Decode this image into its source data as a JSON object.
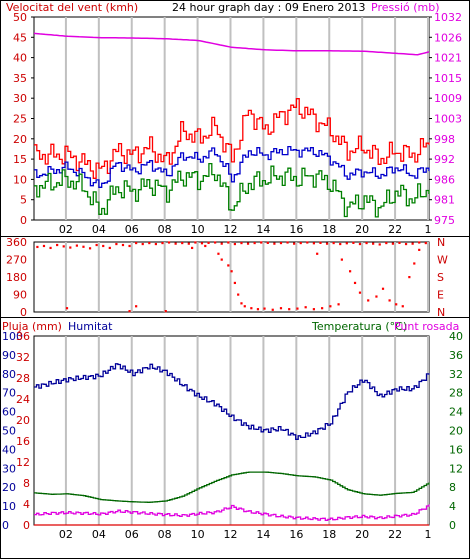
{
  "header": {
    "title": "24 hour graph day : 09 Enero 2013",
    "wind_label": "Velocitat del vent (kmh)",
    "pressure_label": "Pressió (mb)"
  },
  "direction_panel": {
    "compass": [
      "N",
      "W",
      "S",
      "E",
      "N"
    ]
  },
  "bottom_panel": {
    "rain_label": "Pluja (mm)",
    "humidity_label": "Humitat",
    "temp_label": "Temperatura (°C)",
    "dew_label": "Punt rosada"
  },
  "colors": {
    "wind_gust": "#ff0000",
    "wind_avg": "#0000cc",
    "wind_low": "#008000",
    "pressure": "#e000e0",
    "direction": "#ff0000",
    "humidity": "#000099",
    "temperature": "#006600",
    "dew": "#e000e0",
    "rain": "#dd0000",
    "grid": "#c0c0c0"
  },
  "chart_data": [
    {
      "type": "line",
      "title": "24 hour graph day : 09 Enero 2013",
      "x_ticks": [
        "02",
        "04",
        "06",
        "08",
        "10",
        "12",
        "14",
        "16",
        "18",
        "20",
        "22",
        "1"
      ],
      "x_range": [
        0,
        24
      ],
      "y_left": {
        "label": "Velocitat del vent (kmh)",
        "range": [
          0,
          50
        ],
        "ticks": [
          "0",
          "5",
          "10",
          "15",
          "20",
          "25",
          "30",
          "35",
          "40",
          "45",
          "50"
        ]
      },
      "y_right": {
        "label": "Pressió (mb)",
        "range": [
          975,
          1032
        ],
        "ticks": [
          "975",
          "981",
          "986",
          "992",
          "998",
          "1003",
          "1009",
          "1015",
          "1021",
          "1026",
          "1032"
        ]
      },
      "series": [
        {
          "name": "Pressió (mb)",
          "axis": "right",
          "x": [
            0,
            2,
            4,
            6,
            8,
            10,
            12,
            14,
            16,
            18,
            20,
            22,
            23.3,
            24
          ],
          "y": [
            1027.4,
            1026.6,
            1026.2,
            1026.1,
            1025.9,
            1025.4,
            1023.5,
            1022.8,
            1022.5,
            1022.5,
            1022.4,
            1021.8,
            1021.4,
            1022.2
          ]
        },
        {
          "axis": "left",
          "x": [
            0,
            1,
            2,
            3,
            4,
            5,
            6,
            7,
            8,
            9,
            10,
            11,
            12,
            13,
            14,
            15,
            16,
            17,
            18,
            19,
            20,
            21,
            22,
            23,
            24
          ],
          "y": [
            16,
            16,
            16,
            14,
            12,
            17,
            16,
            18,
            14,
            22,
            20,
            23,
            15,
            27,
            22,
            26,
            28,
            25,
            22,
            17,
            18,
            15,
            17,
            16,
            19
          ]
        },
        {
          "axis": "left",
          "x": [
            0,
            1,
            2,
            3,
            4,
            5,
            6,
            7,
            8,
            9,
            10,
            11,
            12,
            13,
            14,
            15,
            16,
            17,
            18,
            19,
            20,
            21,
            22,
            23,
            24
          ],
          "y": [
            11,
            12,
            13,
            11,
            8,
            14,
            12,
            14,
            11,
            16,
            15,
            17,
            10,
            17,
            16,
            17,
            17,
            17,
            15,
            11,
            12,
            11,
            13,
            11,
            13
          ]
        },
        {
          "axis": "left",
          "x": [
            0,
            1,
            2,
            3,
            4,
            5,
            6,
            7,
            8,
            9,
            10,
            11,
            12,
            13,
            14,
            15,
            16,
            17,
            18,
            19,
            20,
            21,
            22,
            23,
            24
          ],
          "y": [
            8,
            9,
            10,
            8,
            2,
            8,
            7,
            9,
            7,
            11,
            10,
            12,
            3,
            9,
            10,
            11,
            10,
            11,
            9,
            3,
            5,
            3,
            7,
            5,
            8
          ]
        }
      ]
    },
    {
      "type": "scatter",
      "x_range": [
        0,
        24
      ],
      "y_left": {
        "range": [
          0,
          360
        ],
        "ticks": [
          "0",
          "90",
          "180",
          "270",
          "360"
        ]
      },
      "y_right_labels": [
        "N",
        "W",
        "S",
        "E",
        "N"
      ],
      "points": [
        [
          0.2,
          335
        ],
        [
          0.6,
          340
        ],
        [
          1.0,
          330
        ],
        [
          1.4,
          345
        ],
        [
          1.8,
          338
        ],
        [
          2.2,
          332
        ],
        [
          2.6,
          342
        ],
        [
          3.0,
          336
        ],
        [
          3.4,
          328
        ],
        [
          3.8,
          345
        ],
        [
          4.2,
          340
        ],
        [
          4.6,
          330
        ],
        [
          5.0,
          350
        ],
        [
          5.4,
          345
        ],
        [
          5.8,
          340
        ],
        [
          6.2,
          355
        ],
        [
          6.6,
          350
        ],
        [
          7.0,
          355
        ],
        [
          7.4,
          350
        ],
        [
          7.8,
          355
        ],
        [
          8.2,
          358
        ],
        [
          8.6,
          352
        ],
        [
          9.0,
          355
        ],
        [
          9.4,
          352
        ],
        [
          9.8,
          358
        ],
        [
          10.2,
          354
        ],
        [
          10.6,
          356
        ],
        [
          11.0,
          358
        ],
        [
          11.4,
          352
        ],
        [
          11.8,
          358
        ],
        [
          12.2,
          350
        ],
        [
          12.6,
          355
        ],
        [
          13.0,
          352
        ],
        [
          13.4,
          355
        ],
        [
          13.8,
          358
        ],
        [
          14.2,
          356
        ],
        [
          14.6,
          352
        ],
        [
          15.0,
          355
        ],
        [
          15.4,
          358
        ],
        [
          15.8,
          352
        ],
        [
          16.2,
          355
        ],
        [
          16.6,
          358
        ],
        [
          17.0,
          354
        ],
        [
          17.4,
          356
        ],
        [
          17.8,
          352
        ],
        [
          18.2,
          355
        ],
        [
          18.6,
          350
        ],
        [
          19.0,
          354
        ],
        [
          19.4,
          356
        ],
        [
          19.8,
          350
        ],
        [
          20.2,
          355
        ],
        [
          20.6,
          352
        ],
        [
          21.0,
          348
        ],
        [
          21.4,
          355
        ],
        [
          21.8,
          352
        ],
        [
          22.2,
          356
        ],
        [
          22.6,
          350
        ],
        [
          23.0,
          352
        ],
        [
          23.4,
          358
        ],
        [
          23.8,
          355
        ],
        [
          11.2,
          300
        ],
        [
          11.4,
          270
        ],
        [
          11.8,
          240
        ],
        [
          12.0,
          210
        ],
        [
          12.2,
          150
        ],
        [
          12.4,
          90
        ],
        [
          12.6,
          45
        ],
        [
          12.8,
          30
        ],
        [
          13.2,
          20
        ],
        [
          13.6,
          15
        ],
        [
          14.0,
          18
        ],
        [
          14.5,
          12
        ],
        [
          15.0,
          20
        ],
        [
          15.5,
          15
        ],
        [
          16.0,
          18
        ],
        [
          16.5,
          25
        ],
        [
          17.0,
          15
        ],
        [
          17.5,
          20
        ],
        [
          18.0,
          30
        ],
        [
          18.5,
          40
        ],
        [
          2.0,
          20
        ],
        [
          5.8,
          5
        ],
        [
          6.2,
          30
        ],
        [
          8.0,
          5
        ],
        [
          17.2,
          300
        ],
        [
          18.7,
          270
        ],
        [
          19.2,
          210
        ],
        [
          19.5,
          150
        ],
        [
          19.8,
          100
        ],
        [
          20.3,
          60
        ],
        [
          20.8,
          80
        ],
        [
          21.2,
          120
        ],
        [
          21.6,
          60
        ],
        [
          22.0,
          40
        ],
        [
          22.4,
          30
        ],
        [
          22.8,
          180
        ],
        [
          23.1,
          250
        ],
        [
          23.4,
          320
        ],
        [
          10.4,
          340
        ],
        [
          9.6,
          330
        ]
      ]
    },
    {
      "type": "line",
      "x_ticks": [
        "02",
        "04",
        "06",
        "08",
        "10",
        "12",
        "14",
        "16",
        "18",
        "20",
        "22",
        "1"
      ],
      "x_range": [
        0,
        24
      ],
      "y_left": {
        "label": "Pluja (mm)",
        "range": [
          0,
          100
        ],
        "ticks": [
          "0",
          "10",
          "20",
          "30",
          "40",
          "50",
          "60",
          "70",
          "80",
          "90",
          "100"
        ]
      },
      "y_left_inner": {
        "label": "Humitat",
        "range": [
          0,
          36
        ],
        "ticks": [
          "0",
          "4",
          "8",
          "12",
          "16",
          "20",
          "24",
          "28",
          "32",
          "36"
        ]
      },
      "y_right": {
        "label": "Temperatura (°C)",
        "range": [
          0,
          40
        ],
        "ticks": [
          "0",
          "4",
          "8",
          "12",
          "16",
          "20",
          "24",
          "28",
          "32",
          "36",
          "40"
        ]
      },
      "series": [
        {
          "name": "Humitat",
          "axis": "left",
          "x": [
            0,
            1,
            2,
            3,
            4,
            5,
            6,
            7,
            8,
            9,
            10,
            11,
            12,
            13,
            14,
            15,
            16,
            17,
            18,
            19,
            20,
            21,
            22,
            23,
            24
          ],
          "y": [
            73,
            75,
            77,
            78,
            79,
            85,
            80,
            84,
            81,
            74,
            68,
            64,
            57,
            52,
            50,
            51,
            46,
            49,
            54,
            70,
            77,
            68,
            72,
            72,
            80
          ]
        },
        {
          "name": "Temperatura (°C)",
          "axis": "right",
          "x": [
            0,
            1,
            2,
            3,
            4,
            5,
            6,
            7,
            8,
            9,
            10,
            11,
            12,
            13,
            14,
            15,
            16,
            17,
            18,
            19,
            20,
            21,
            22,
            23,
            24
          ],
          "y": [
            6.8,
            6.5,
            6.6,
            6.2,
            5.4,
            5.1,
            4.9,
            4.8,
            5.1,
            6.1,
            7.8,
            9.3,
            10.6,
            11.2,
            11.2,
            10.9,
            10.4,
            10.2,
            9.5,
            7.5,
            6.6,
            6.3,
            6.7,
            6.9,
            9.0
          ]
        },
        {
          "name": "Punt rosada",
          "axis": "right",
          "x": [
            0,
            1,
            2,
            3,
            4,
            5,
            6,
            7,
            8,
            9,
            10,
            11,
            12,
            13,
            14,
            15,
            16,
            17,
            18,
            19,
            20,
            21,
            22,
            23,
            24
          ],
          "y": [
            2.2,
            2.5,
            2.6,
            2.5,
            2.3,
            2.9,
            2.7,
            2.4,
            2.2,
            2.0,
            2.4,
            2.7,
            3.9,
            2.8,
            2.3,
            1.8,
            1.5,
            1.3,
            1.2,
            1.6,
            1.8,
            1.5,
            1.9,
            2.2,
            4.2
          ]
        },
        {
          "name": "Pluja (mm)",
          "axis": "left",
          "x": [
            0,
            24
          ],
          "y": [
            0,
            0
          ]
        }
      ]
    }
  ]
}
